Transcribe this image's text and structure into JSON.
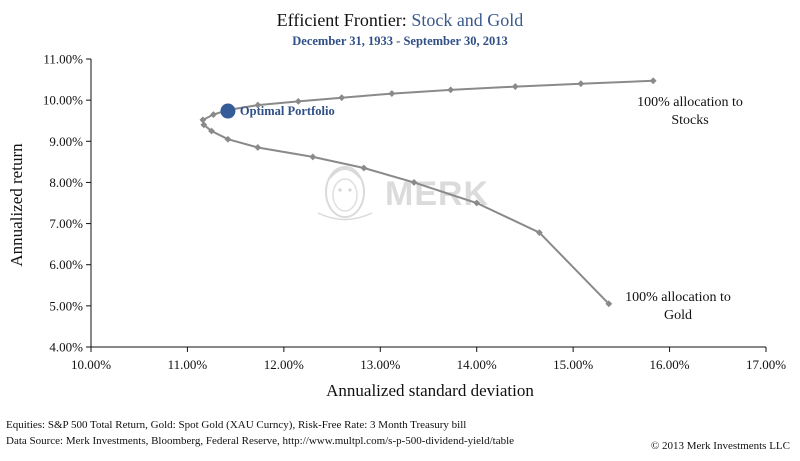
{
  "colors": {
    "series": "#8a8a8a",
    "marker": "#8a8a8a",
    "optimal": "#355c96",
    "accent": "#3a5a8c",
    "watermark": "#d8d8d8"
  },
  "watermark": {
    "text": "MERK",
    "emblem": "lion-head-logo"
  },
  "chart_data": {
    "type": "scatter",
    "title_main": "Efficient Frontier: ",
    "title_accent": "Stock and Gold",
    "subtitle": "December 31, 1933 - September 30, 2013",
    "xlabel": "Annualized standard deviation",
    "ylabel": "Annualized return",
    "xlim": [
      10,
      17
    ],
    "ylim": [
      4,
      11
    ],
    "x_ticks": [
      "10.00%",
      "11.00%",
      "12.00%",
      "13.00%",
      "14.00%",
      "15.00%",
      "16.00%",
      "17.00%"
    ],
    "y_ticks": [
      "4.00%",
      "5.00%",
      "6.00%",
      "7.00%",
      "8.00%",
      "9.00%",
      "10.00%",
      "11.00%"
    ],
    "grid": false,
    "series": [
      {
        "name": "Efficient Frontier",
        "points": [
          {
            "x": 15.37,
            "y": 5.05
          },
          {
            "x": 14.65,
            "y": 6.78
          },
          {
            "x": 14.0,
            "y": 7.5
          },
          {
            "x": 13.35,
            "y": 8.0
          },
          {
            "x": 12.83,
            "y": 8.35
          },
          {
            "x": 12.3,
            "y": 8.62
          },
          {
            "x": 11.73,
            "y": 8.85
          },
          {
            "x": 11.42,
            "y": 9.05
          },
          {
            "x": 11.25,
            "y": 9.25
          },
          {
            "x": 11.17,
            "y": 9.4
          },
          {
            "x": 11.16,
            "y": 9.52
          },
          {
            "x": 11.27,
            "y": 9.65
          },
          {
            "x": 11.42,
            "y": 9.76
          },
          {
            "x": 11.73,
            "y": 9.88
          },
          {
            "x": 12.15,
            "y": 9.97
          },
          {
            "x": 12.6,
            "y": 10.06
          },
          {
            "x": 13.12,
            "y": 10.16
          },
          {
            "x": 13.73,
            "y": 10.25
          },
          {
            "x": 14.4,
            "y": 10.33
          },
          {
            "x": 15.08,
            "y": 10.4
          },
          {
            "x": 15.83,
            "y": 10.47
          }
        ]
      }
    ],
    "optimal": {
      "x": 11.42,
      "y": 9.76,
      "label": "Optimal Portfolio"
    },
    "annotations": [
      {
        "id": "stocks",
        "lines": [
          "100% allocation to",
          "Stocks"
        ]
      },
      {
        "id": "gold",
        "lines": [
          "100% allocation to",
          "Gold"
        ]
      }
    ]
  },
  "footer": {
    "line1": "Equities: S&P 500 Total Return, Gold: Spot Gold (XAU Curncy), Risk-Free Rate: 3 Month Treasury bill",
    "line2": "Data Source: Merk Investments, Bloomberg, Federal Reserve, http://www.multpl.com/s-p-500-dividend-yield/table",
    "copyright": "© 2013 Merk Investments LLC"
  }
}
